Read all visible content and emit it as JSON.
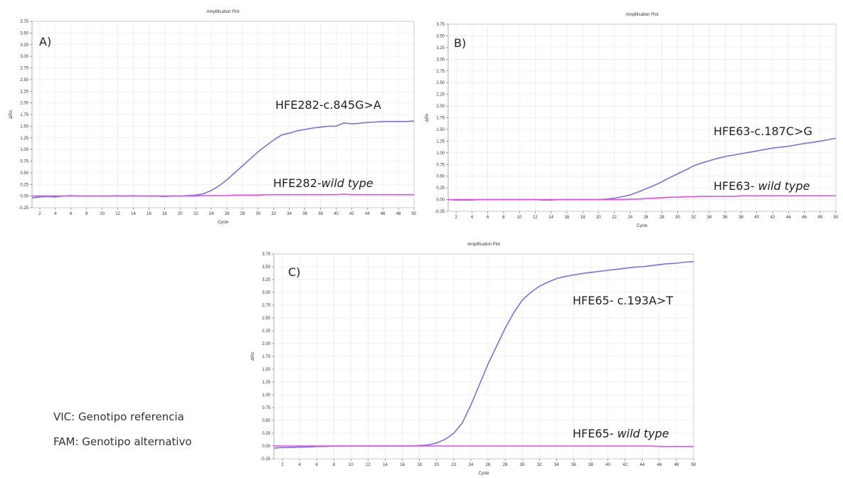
{
  "chart_data": [
    {
      "type": "line",
      "title": "Amplification Plot",
      "panel_label": "A)",
      "xlabel": "Cycle",
      "ylabel": "ΔRn",
      "x": [
        1,
        2,
        3,
        4,
        5,
        6,
        7,
        8,
        9,
        10,
        11,
        12,
        13,
        14,
        15,
        16,
        17,
        18,
        19,
        20,
        21,
        22,
        23,
        24,
        25,
        26,
        27,
        28,
        29,
        30,
        31,
        32,
        33,
        34,
        35,
        36,
        37,
        38,
        39,
        40,
        41,
        42,
        43,
        44,
        45,
        46,
        47,
        48,
        49,
        50
      ],
      "xlim": [
        1,
        50
      ],
      "xticks": [
        2,
        4,
        6,
        8,
        10,
        12,
        14,
        16,
        18,
        20,
        22,
        24,
        26,
        28,
        30,
        32,
        34,
        36,
        38,
        40,
        42,
        44,
        46,
        48,
        50
      ],
      "ylim": [
        -0.25,
        3.75
      ],
      "yticks": [
        -0.25,
        {
          "value": 0,
          "label": "0.00"
        },
        0.25,
        {
          "value": 0.5,
          "label": "0.50"
        },
        0.75,
        {
          "value": 1,
          "label": "1.00"
        },
        1.25,
        {
          "value": 1.5,
          "label": "1.50"
        },
        1.75,
        {
          "value": 2,
          "label": "2.00"
        },
        2.25,
        {
          "value": 2.5,
          "label": "2.50"
        },
        2.75,
        {
          "value": 3,
          "label": "3.00"
        },
        3.25,
        {
          "value": 3.5,
          "label": "3.50"
        },
        3.75
      ],
      "grid": true,
      "series": [
        {
          "color": "#7a6fe6",
          "values": [
            -0.04,
            -0.02,
            -0.01,
            -0.02,
            0,
            0.01,
            0,
            0,
            0,
            0,
            0,
            0.01,
            0,
            0.01,
            0,
            0,
            0,
            -0.01,
            0,
            0,
            0.01,
            0.02,
            0.05,
            0.12,
            0.22,
            0.35,
            0.5,
            0.65,
            0.8,
            0.95,
            1.08,
            1.2,
            1.31,
            1.35,
            1.4,
            1.43,
            1.46,
            1.48,
            1.5,
            1.5,
            1.57,
            1.55,
            1.56,
            1.58,
            1.59,
            1.6,
            1.6,
            1.6,
            1.6,
            1.61
          ]
        },
        {
          "color": "#e64ce6",
          "values": [
            0,
            0,
            0,
            0,
            0,
            0,
            0,
            0,
            0,
            0,
            0,
            0,
            0,
            0,
            0,
            0,
            0,
            0,
            0,
            0,
            0,
            0,
            0.01,
            0.01,
            0.01,
            0.01,
            0.02,
            0.02,
            0.02,
            0.02,
            0.03,
            0.03,
            0.03,
            0.03,
            0.03,
            0.03,
            0.03,
            0.03,
            0.03,
            0.03,
            0.04,
            0.03,
            0.03,
            0.03,
            0.03,
            0.03,
            0.03,
            0.03,
            0.03,
            0.03
          ]
        }
      ],
      "annotations": [
        {
          "text": "HFE282-c.845G>A"
        },
        {
          "text": "HFE282-",
          "italic": "wild type"
        }
      ]
    },
    {
      "type": "line",
      "title": "Amplification Plot",
      "panel_label": "B)",
      "xlabel": "Cycle",
      "ylabel": "ΔRn",
      "x": [
        1,
        2,
        3,
        4,
        5,
        6,
        7,
        8,
        9,
        10,
        11,
        12,
        13,
        14,
        15,
        16,
        17,
        18,
        19,
        20,
        21,
        22,
        23,
        24,
        25,
        26,
        27,
        28,
        29,
        30,
        31,
        32,
        33,
        34,
        35,
        36,
        37,
        38,
        39,
        40,
        41,
        42,
        43,
        44,
        45,
        46,
        47,
        48,
        49,
        50
      ],
      "xlim": [
        1,
        50
      ],
      "xticks": [
        2,
        4,
        6,
        8,
        10,
        12,
        14,
        16,
        18,
        20,
        22,
        24,
        26,
        28,
        30,
        32,
        34,
        36,
        38,
        40,
        42,
        44,
        46,
        48,
        50
      ],
      "ylim": [
        -0.25,
        3.75
      ],
      "yticks": [
        -0.25,
        {
          "value": 0,
          "label": "0.00"
        },
        0.25,
        {
          "value": 0.5,
          "label": "0.50"
        },
        0.75,
        {
          "value": 1,
          "label": "1.00"
        },
        1.25,
        {
          "value": 1.5,
          "label": "1.50"
        },
        1.75,
        {
          "value": 2,
          "label": "2.00"
        },
        2.25,
        {
          "value": 2.5,
          "label": "2.50"
        },
        2.75,
        {
          "value": 3,
          "label": "3.00"
        },
        3.25,
        {
          "value": 3.5,
          "label": "3.50"
        },
        3.75
      ],
      "grid": true,
      "series": [
        {
          "color": "#7a6fe6",
          "values": [
            0,
            -0.01,
            -0.01,
            -0.01,
            0,
            0,
            0,
            0,
            0,
            0,
            0,
            0,
            -0.01,
            -0.01,
            0,
            0,
            0,
            0,
            0,
            0,
            0.01,
            0.03,
            0.06,
            0.1,
            0.16,
            0.23,
            0.3,
            0.38,
            0.47,
            0.55,
            0.63,
            0.72,
            0.78,
            0.83,
            0.88,
            0.92,
            0.95,
            0.98,
            1.01,
            1.04,
            1.07,
            1.1,
            1.12,
            1.14,
            1.17,
            1.2,
            1.22,
            1.25,
            1.28,
            1.31
          ]
        },
        {
          "color": "#e64ce6",
          "values": [
            0,
            0,
            0,
            0,
            0,
            0,
            0,
            0,
            0,
            0,
            0,
            0,
            0,
            0,
            0,
            0,
            0,
            0,
            0,
            0,
            0,
            0,
            0,
            0.01,
            0.01,
            0.02,
            0.03,
            0.04,
            0.05,
            0.05,
            0.06,
            0.06,
            0.07,
            0.07,
            0.07,
            0.07,
            0.07,
            0.08,
            0.08,
            0.08,
            0.08,
            0.08,
            0.08,
            0.08,
            0.08,
            0.08,
            0.08,
            0.08,
            0.08,
            0.08
          ]
        }
      ],
      "annotations": [
        {
          "text": "HFE63-c.187C>G"
        },
        {
          "text": "HFE63- ",
          "italic": "wild type"
        }
      ]
    },
    {
      "type": "line",
      "title": "Amplification Plot",
      "panel_label": "C)",
      "xlabel": "Cycle",
      "ylabel": "ΔRn",
      "x": [
        1,
        2,
        3,
        4,
        5,
        6,
        7,
        8,
        9,
        10,
        11,
        12,
        13,
        14,
        15,
        16,
        17,
        18,
        19,
        20,
        21,
        22,
        23,
        24,
        25,
        26,
        27,
        28,
        29,
        30,
        31,
        32,
        33,
        34,
        35,
        36,
        37,
        38,
        39,
        40,
        41,
        42,
        43,
        44,
        45,
        46,
        47,
        48,
        49,
        50
      ],
      "xlim": [
        1,
        50
      ],
      "xticks": [
        2,
        4,
        6,
        8,
        10,
        12,
        14,
        16,
        18,
        20,
        22,
        24,
        26,
        28,
        30,
        32,
        34,
        36,
        38,
        40,
        42,
        44,
        46,
        48,
        50
      ],
      "ylim": [
        -0.25,
        3.75
      ],
      "yticks": [
        -0.25,
        {
          "value": 0,
          "label": "0.00"
        },
        0.25,
        {
          "value": 0.5,
          "label": "0.50"
        },
        0.75,
        {
          "value": 1,
          "label": "1.00"
        },
        1.25,
        {
          "value": 1.5,
          "label": "1.50"
        },
        1.75,
        {
          "value": 2,
          "label": "2.00"
        },
        2.25,
        {
          "value": 2.5,
          "label": "2.50"
        },
        2.75,
        {
          "value": 3,
          "label": "3.00"
        },
        3.25,
        {
          "value": 3.5,
          "label": "3.50"
        },
        3.75
      ],
      "grid": true,
      "series": [
        {
          "color": "#7a6fe6",
          "values": [
            -0.04,
            -0.03,
            -0.03,
            -0.02,
            -0.02,
            -0.01,
            -0.01,
            0,
            0,
            0,
            0,
            0,
            0,
            0,
            0,
            0,
            0,
            0.01,
            0.02,
            0.06,
            0.13,
            0.25,
            0.45,
            0.8,
            1.2,
            1.6,
            1.95,
            2.3,
            2.6,
            2.85,
            3.0,
            3.12,
            3.2,
            3.27,
            3.31,
            3.34,
            3.37,
            3.39,
            3.41,
            3.43,
            3.45,
            3.47,
            3.49,
            3.5,
            3.52,
            3.54,
            3.56,
            3.57,
            3.59,
            3.6
          ]
        },
        {
          "color": "#e64ce6",
          "values": [
            0,
            0,
            0,
            0,
            0,
            0,
            0,
            0,
            0,
            0,
            0,
            0,
            0,
            0,
            0,
            0,
            0,
            0,
            0,
            0,
            0,
            0,
            0,
            0,
            0,
            0,
            0,
            0,
            0,
            0,
            0,
            0,
            0,
            0,
            0,
            0,
            0,
            0,
            0,
            0,
            0,
            0,
            0,
            0,
            0,
            -0.01,
            -0.01,
            -0.01,
            -0.01,
            -0.01
          ]
        }
      ],
      "annotations": [
        {
          "text": "HFE65- c.193A>T"
        },
        {
          "text": "HFE65- ",
          "italic": "wild type"
        }
      ]
    }
  ],
  "legend": [
    {
      "text": "VIC: Genotipo referencia",
      "color": "#c63fc6"
    },
    {
      "text": "FAM: Genotipo alternativo",
      "color": "#4a78d2"
    }
  ]
}
